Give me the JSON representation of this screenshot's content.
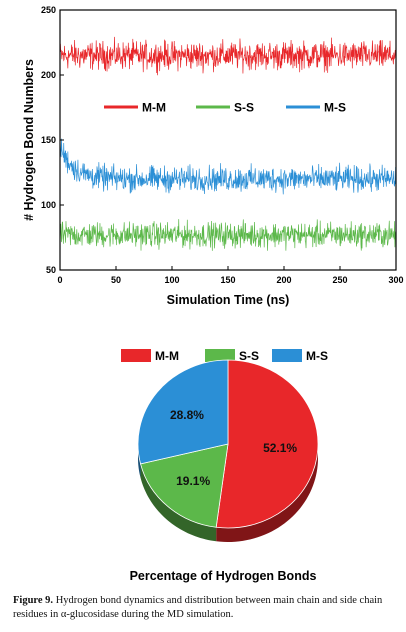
{
  "chart_data": [
    {
      "type": "line",
      "xlabel": "Simulation Time (ns)",
      "ylabel": "# Hydrogen Bond Numbers",
      "xlim": [
        0,
        300
      ],
      "ylim": [
        50,
        250
      ],
      "x_ticks": [
        0,
        50,
        100,
        150,
        200,
        250,
        300
      ],
      "y_ticks": [
        50,
        100,
        150,
        200,
        250
      ],
      "legend_position": "center",
      "series": [
        {
          "name": "M-M",
          "color": "#e8272a",
          "mean": 215,
          "noise_amplitude": 10,
          "start_value": 215
        },
        {
          "name": "S-S",
          "color": "#5cb84a",
          "mean": 77,
          "noise_amplitude": 9,
          "start_value": 77
        },
        {
          "name": "M-S",
          "color": "#2b8fd6",
          "mean": 120,
          "noise_amplitude": 9,
          "start_value": 145
        }
      ]
    },
    {
      "type": "pie",
      "title": "Percentage of Hydrogen Bonds",
      "legend_position": "top",
      "slices": [
        {
          "name": "M-M",
          "value": 52.1,
          "label": "52.1%",
          "color": "#e8272a"
        },
        {
          "name": "S-S",
          "value": 19.1,
          "label": "19.1%",
          "color": "#5cb84a"
        },
        {
          "name": "M-S",
          "value": 28.8,
          "label": "28.8%",
          "color": "#2b8fd6"
        }
      ]
    }
  ],
  "caption": {
    "label": "Figure 9.",
    "text": " Hydrogen bond dynamics and distribution between main chain and side chain residues in α-glucosidase during the MD simulation."
  }
}
